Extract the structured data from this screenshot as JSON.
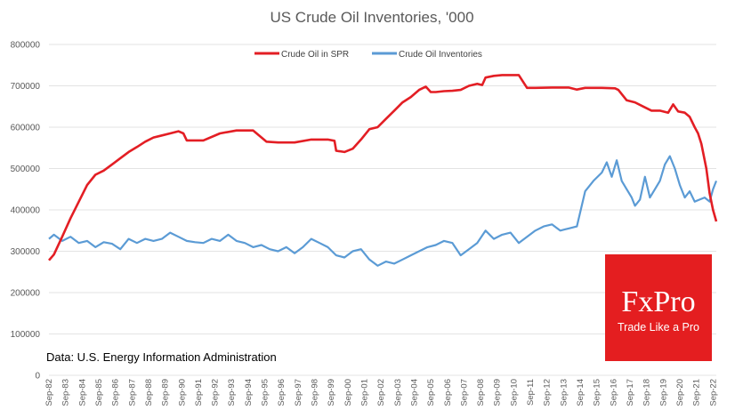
{
  "chart_data": {
    "type": "line",
    "title": "US Crude Oil Inventories, '000",
    "xlabel": "",
    "ylabel": "",
    "ylim": [
      0,
      800000
    ],
    "y_ticks": [
      "0",
      "100000",
      "200000",
      "300000",
      "400000",
      "500000",
      "600000",
      "700000",
      "800000"
    ],
    "x_ticks": [
      "Sep-82",
      "Sep-83",
      "Sep-84",
      "Sep-85",
      "Sep-86",
      "Sep-87",
      "Sep-88",
      "Sep-89",
      "Sep-90",
      "Sep-91",
      "Sep-92",
      "Sep-93",
      "Sep-94",
      "Sep-95",
      "Sep-96",
      "Sep-97",
      "Sep-98",
      "Sep-99",
      "Sep-00",
      "Sep-01",
      "Sep-02",
      "Sep-03",
      "Sep-04",
      "Sep-05",
      "Sep-06",
      "Sep-07",
      "Sep-08",
      "Sep-09",
      "Sep-10",
      "Sep-11",
      "Sep-12",
      "Sep-13",
      "Sep-14",
      "Sep-15",
      "Sep-16",
      "Sep-17",
      "Sep-18",
      "Sep-19",
      "Sep-20",
      "Sep-21",
      "Sep-22"
    ],
    "xlim": [
      1982.7,
      2022.9
    ],
    "grid": true,
    "legend_position": "top",
    "source": "Data: U.S. Energy Information Administration",
    "series": [
      {
        "name": "Crude Oil in SPR",
        "color": "#e31e24",
        "x": [
          1982.7,
          1983.0,
          1983.5,
          1984.0,
          1984.5,
          1985.0,
          1985.5,
          1986.0,
          1986.5,
          1987.0,
          1987.5,
          1988.0,
          1988.5,
          1989.0,
          1989.5,
          1990.0,
          1990.5,
          1990.8,
          1991.0,
          1992.0,
          1993.0,
          1994.0,
          1995.0,
          1995.8,
          1996.5,
          1997.5,
          1998.5,
          1999.5,
          1999.9,
          2000.0,
          2000.5,
          2001.0,
          2001.5,
          2002.0,
          2002.5,
          2003.0,
          2003.5,
          2004.0,
          2004.5,
          2005.0,
          2005.4,
          2005.7,
          2006.0,
          2006.5,
          2007.0,
          2007.5,
          2008.0,
          2008.5,
          2008.8,
          2009.0,
          2009.5,
          2010.0,
          2010.5,
          2011.0,
          2011.5,
          2012.0,
          2013.0,
          2014.0,
          2014.5,
          2015.0,
          2016.0,
          2016.8,
          2017.0,
          2017.5,
          2018.0,
          2018.5,
          2019.0,
          2019.5,
          2020.0,
          2020.3,
          2020.6,
          2021.0,
          2021.3,
          2021.6,
          2021.8,
          2022.0,
          2022.3,
          2022.5,
          2022.7,
          2022.9
        ],
        "values": [
          278000,
          292000,
          335000,
          380000,
          420000,
          460000,
          485000,
          495000,
          510000,
          525000,
          540000,
          552000,
          565000,
          575000,
          580000,
          585000,
          590000,
          585000,
          568000,
          568000,
          585000,
          592000,
          592000,
          565000,
          563000,
          563000,
          570000,
          570000,
          567000,
          543000,
          540000,
          548000,
          570000,
          595000,
          600000,
          620000,
          640000,
          660000,
          673000,
          690000,
          698000,
          685000,
          685000,
          687000,
          688000,
          690000,
          700000,
          705000,
          702000,
          720000,
          724000,
          726000,
          726000,
          726000,
          695000,
          695000,
          696000,
          696000,
          691000,
          695000,
          695000,
          694000,
          690000,
          665000,
          660000,
          650000,
          640000,
          640000,
          635000,
          655000,
          638000,
          635000,
          625000,
          600000,
          585000,
          560000,
          500000,
          440000,
          400000,
          372000
        ]
      },
      {
        "name": "Crude Oil Inventories",
        "color": "#5b9bd5",
        "x": [
          1982.7,
          1983.0,
          1983.5,
          1984.0,
          1984.5,
          1985.0,
          1985.5,
          1986.0,
          1986.5,
          1987.0,
          1987.5,
          1988.0,
          1988.5,
          1989.0,
          1989.5,
          1990.0,
          1990.5,
          1991.0,
          1991.5,
          1992.0,
          1992.5,
          1993.0,
          1993.5,
          1994.0,
          1994.5,
          1995.0,
          1995.5,
          1996.0,
          1996.5,
          1997.0,
          1997.5,
          1998.0,
          1998.5,
          1999.0,
          1999.5,
          2000.0,
          2000.5,
          2001.0,
          2001.5,
          2002.0,
          2002.5,
          2003.0,
          2003.5,
          2004.0,
          2004.5,
          2005.0,
          2005.5,
          2006.0,
          2006.5,
          2007.0,
          2007.5,
          2008.0,
          2008.5,
          2009.0,
          2009.5,
          2010.0,
          2010.5,
          2011.0,
          2011.5,
          2012.0,
          2012.5,
          2013.0,
          2013.5,
          2014.0,
          2014.5,
          2015.0,
          2015.5,
          2016.0,
          2016.3,
          2016.6,
          2016.9,
          2017.2,
          2017.5,
          2017.8,
          2018.0,
          2018.3,
          2018.6,
          2018.9,
          2019.2,
          2019.5,
          2019.8,
          2020.1,
          2020.4,
          2020.7,
          2021.0,
          2021.3,
          2021.6,
          2021.9,
          2022.2,
          2022.5,
          2022.7,
          2022.9
        ],
        "values": [
          330000,
          340000,
          325000,
          335000,
          320000,
          325000,
          310000,
          322000,
          318000,
          305000,
          330000,
          320000,
          330000,
          325000,
          330000,
          345000,
          335000,
          325000,
          322000,
          320000,
          330000,
          325000,
          340000,
          325000,
          320000,
          310000,
          315000,
          305000,
          300000,
          310000,
          295000,
          310000,
          330000,
          320000,
          310000,
          290000,
          285000,
          300000,
          305000,
          280000,
          265000,
          275000,
          270000,
          280000,
          290000,
          300000,
          310000,
          315000,
          325000,
          320000,
          290000,
          305000,
          320000,
          350000,
          330000,
          340000,
          345000,
          320000,
          335000,
          350000,
          360000,
          365000,
          350000,
          355000,
          360000,
          445000,
          470000,
          490000,
          515000,
          480000,
          520000,
          470000,
          450000,
          430000,
          410000,
          425000,
          480000,
          430000,
          450000,
          470000,
          510000,
          530000,
          500000,
          460000,
          430000,
          445000,
          420000,
          425000,
          430000,
          420000,
          450000,
          470000
        ]
      }
    ]
  },
  "logo": {
    "brand": "FxPro",
    "tagline": "Trade Like a Pro",
    "color": "#e41e20"
  }
}
